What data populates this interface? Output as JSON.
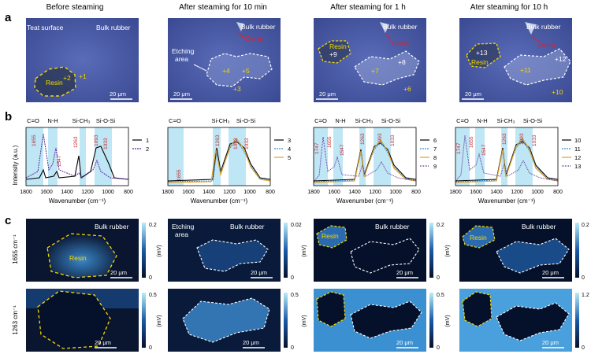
{
  "panel_labels": {
    "a": "a",
    "b": "b",
    "c": "c"
  },
  "column_titles": [
    "Before steaming",
    "After steaming for 10 min",
    "After steaming for 1 h",
    "Ater steaming for 10 h"
  ],
  "panel_a": {
    "col1": {
      "teat_surface": "Teat surface",
      "bulk_rubber": "Bulk rubber",
      "resin": "Resin",
      "markers": [
        "+2",
        "+1"
      ],
      "scale": "20 μm"
    },
    "col2": {
      "bulk_rubber": "Bulk rubber",
      "denis": "Denis",
      "etching": "Etching",
      "area": "area",
      "markers": [
        "+4",
        "+5",
        "+3"
      ],
      "scale": "20 μm"
    },
    "col3": {
      "bulk_rubber": "Bulk rubber",
      "resin": "Resin",
      "denis": "Denis",
      "markers": [
        "+9",
        "+7",
        "+8",
        "+6"
      ],
      "scale": "20 μm"
    },
    "col4": {
      "bulk_rubber": "Bulk rubber",
      "resin": "Resin",
      "denis": "Denis",
      "markers": [
        "+13",
        "+11",
        "+12",
        "+10"
      ],
      "scale": "20 μm"
    }
  },
  "panel_b": {
    "ylabel": "Intensity (a.u.)",
    "xlabel": "Wavenumber (cm⁻¹)",
    "xticks": [
      "1800",
      "1600",
      "1400",
      "1200",
      "1000",
      "800"
    ],
    "band_labels": {
      "co": "C=O",
      "nh": "N-H",
      "sich3": "Si-CH₃",
      "siosi": "Si-O-Si"
    },
    "peaks": {
      "p1655": "1655",
      "p1547": "1547",
      "p1263": "1263",
      "p1093": "1093",
      "p1033": "1033",
      "p1747": "1747"
    },
    "legends": [
      [
        {
          "name": "1",
          "color": "#000000"
        },
        {
          "name": "2",
          "color": "#5a2a9a"
        }
      ],
      [
        {
          "name": "3",
          "color": "#000000"
        },
        {
          "name": "4",
          "color": "#3a8fd8"
        },
        {
          "name": "5",
          "color": "#e0a020"
        }
      ],
      [
        {
          "name": "6",
          "color": "#000000"
        },
        {
          "name": "7",
          "color": "#3a8fd8"
        },
        {
          "name": "8",
          "color": "#e0a020"
        },
        {
          "name": "9",
          "color": "#5a2a9a"
        }
      ],
      [
        {
          "name": "10",
          "color": "#000000"
        },
        {
          "name": "11",
          "color": "#3a8fd8"
        },
        {
          "name": "12",
          "color": "#e0a020"
        },
        {
          "name": "13",
          "color": "#5a2a9a"
        }
      ]
    ]
  },
  "panel_c": {
    "row_labels": [
      "1655 cm⁻¹",
      "1263 cm⁻¹"
    ],
    "unit": "(mV)",
    "bulk_rubber": "Bulk rubber",
    "resin": "Resin",
    "etching": "Etching",
    "area": "area",
    "scale": "20 μm",
    "colorbar_ticks": [
      [
        "0.2",
        "0"
      ],
      [
        "0.02",
        "0"
      ],
      [
        "0.2",
        "0"
      ],
      [
        "0.2",
        "0"
      ],
      [
        "0.5",
        "0"
      ],
      [
        "0.5",
        "0"
      ],
      [
        "0.5",
        "0"
      ],
      [
        "1.2",
        "0"
      ]
    ]
  },
  "colors": {
    "micro_bg": "#3d4f9a",
    "dash_yellow": "#f5d800",
    "dash_white": "#ffffff",
    "denis_red": "#e0202a",
    "peak_red": "#c0282d",
    "band_blue": "#bfe6f5",
    "map_dark": "#0a1530",
    "map_bright": "#55b8e8"
  }
}
